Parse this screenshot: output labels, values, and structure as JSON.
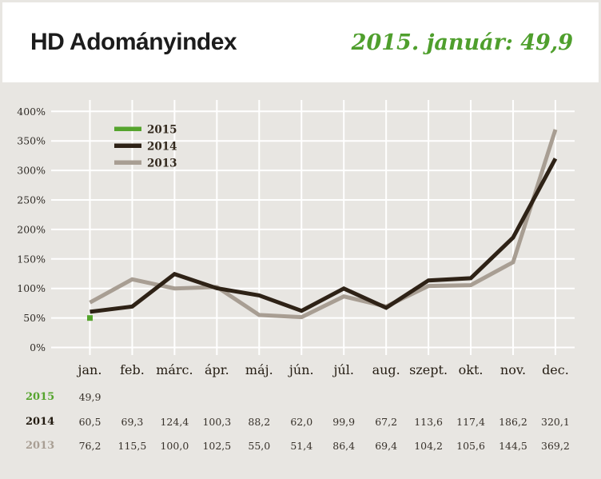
{
  "header": {
    "title": "HD Adományindex",
    "subtitle": "2015. január: 49,9"
  },
  "colors": {
    "background": "#e8e6e2",
    "card": "#ffffff",
    "grid": "#ffffff",
    "green_2015": "#55a42d",
    "dark_2014": "#2e2216",
    "tan_2013": "#a89e93",
    "value_text": "#37312a"
  },
  "chart_data": {
    "type": "line",
    "title": "HD Adományindex",
    "xlabel": "",
    "ylabel": "",
    "ylim": [
      0,
      400
    ],
    "grid": true,
    "legend_position": "top-left",
    "categories": [
      "jan.",
      "feb.",
      "márc.",
      "ápr.",
      "máj.",
      "jún.",
      "júl.",
      "aug.",
      "szept.",
      "okt.",
      "nov.",
      "dec."
    ],
    "y_tick_labels": [
      "0%",
      "50%",
      "100%",
      "150%",
      "200%",
      "250%",
      "300%",
      "350%",
      "400%"
    ],
    "y_tick_step": 50,
    "series": [
      {
        "name": "2015",
        "color": "#55a42d",
        "style": "marker",
        "values": [
          49.9
        ]
      },
      {
        "name": "2014",
        "color": "#2e2216",
        "style": "line",
        "values": [
          60.5,
          69.3,
          124.4,
          100.3,
          88.2,
          62.0,
          99.9,
          67.2,
          113.6,
          117.4,
          186.2,
          320.1
        ]
      },
      {
        "name": "2013",
        "color": "#a89e93",
        "style": "line",
        "values": [
          76.2,
          115.5,
          100.0,
          102.5,
          55.0,
          51.4,
          86.4,
          69.4,
          104.2,
          105.6,
          144.5,
          369.2
        ]
      }
    ]
  },
  "table": {
    "rows": [
      {
        "label": "2015",
        "label_color": "#55a42d",
        "values": [
          "49,9"
        ]
      },
      {
        "label": "2014",
        "label_color": "#221a10",
        "values": [
          "60,5",
          "69,3",
          "124,4",
          "100,3",
          "88,2",
          "62,0",
          "99,9",
          "67,2",
          "113,6",
          "117,4",
          "186,2",
          "320,1"
        ]
      },
      {
        "label": "2013",
        "label_color": "#a89e93",
        "values": [
          "76,2",
          "115,5",
          "100,0",
          "102,5",
          "55,0",
          "51,4",
          "86,4",
          "69,4",
          "104,2",
          "105,6",
          "144,5",
          "369,2"
        ]
      }
    ]
  }
}
